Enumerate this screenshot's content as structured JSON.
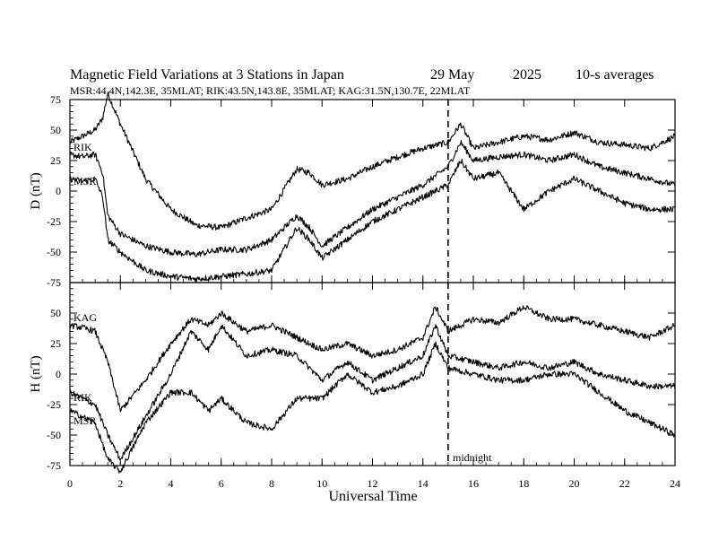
{
  "title": {
    "main": "Magnetic Field Variations at 3 Stations in Japan",
    "date": "29 May",
    "year": "2025",
    "averaging": "10-s averages"
  },
  "subtitle": "MSR:44.4N,142.3E, 35MLAT;  RIK:43.5N,143.8E, 35MLAT;  KAG:31.5N,130.7E, 22MLAT",
  "chart_data": [
    {
      "type": "line",
      "panel": "D",
      "ylabel": "D (nT)",
      "xlabel": "Universal Time",
      "xlim": [
        0,
        24
      ],
      "ylim": [
        -75,
        75
      ],
      "yticks": [
        75,
        50,
        25,
        0,
        -25,
        -50,
        -75
      ],
      "xticks": [
        0,
        2,
        4,
        6,
        8,
        10,
        12,
        14,
        16,
        18,
        20,
        22,
        24
      ],
      "grid": false,
      "x": [
        0,
        0.5,
        1.0,
        1.3,
        1.5,
        2.0,
        3.0,
        4.0,
        5.0,
        6.0,
        7.0,
        8.0,
        9.0,
        9.5,
        10.0,
        11.0,
        12.0,
        13.0,
        14.0,
        15.0,
        15.5,
        16.0,
        17.0,
        18.0,
        19.0,
        20.0,
        21.0,
        22.0,
        23.0,
        24.0
      ],
      "series": [
        {
          "name": "KAG",
          "values": [
            40,
            45,
            50,
            60,
            80,
            55,
            10,
            -15,
            -28,
            -30,
            -22,
            -15,
            18,
            15,
            5,
            10,
            20,
            28,
            35,
            40,
            55,
            35,
            40,
            45,
            42,
            48,
            40,
            38,
            35,
            45
          ]
        },
        {
          "name": "RIK",
          "values": [
            30,
            28,
            30,
            15,
            -20,
            -35,
            -45,
            -50,
            -52,
            -48,
            -48,
            -40,
            -20,
            -30,
            -45,
            -30,
            -15,
            -5,
            5,
            20,
            40,
            25,
            28,
            30,
            25,
            30,
            20,
            15,
            10,
            5
          ]
        },
        {
          "name": "MSR",
          "values": [
            10,
            8,
            10,
            -5,
            -40,
            -50,
            -65,
            -70,
            -72,
            -70,
            -68,
            -65,
            -30,
            -40,
            -55,
            -40,
            -25,
            -15,
            -5,
            5,
            25,
            10,
            15,
            -15,
            0,
            10,
            0,
            -10,
            -15,
            -15
          ]
        }
      ]
    },
    {
      "type": "line",
      "panel": "H",
      "ylabel": "H (nT)",
      "xlabel": "Universal Time",
      "xlim": [
        0,
        24
      ],
      "ylim": [
        -75,
        75
      ],
      "yticks": [
        75,
        50,
        25,
        0,
        -25,
        -50,
        -75
      ],
      "xticks": [
        0,
        2,
        4,
        6,
        8,
        10,
        12,
        14,
        16,
        18,
        20,
        22,
        24
      ],
      "grid": false,
      "x": [
        0,
        0.5,
        1.0,
        1.5,
        2.0,
        3.0,
        4.0,
        4.8,
        5.5,
        6.0,
        7.0,
        8.0,
        9.0,
        10.0,
        11.0,
        12.0,
        13.0,
        14.0,
        14.5,
        15.0,
        16.0,
        17.0,
        18.0,
        19.0,
        20.0,
        21.0,
        22.0,
        23.0,
        24.0
      ],
      "series": [
        {
          "name": "KAG",
          "values": [
            40,
            38,
            35,
            10,
            -30,
            -5,
            25,
            45,
            40,
            50,
            35,
            40,
            30,
            20,
            25,
            15,
            20,
            30,
            55,
            35,
            45,
            42,
            55,
            45,
            45,
            40,
            35,
            30,
            40
          ]
        },
        {
          "name": "RIK",
          "values": [
            -15,
            -20,
            -25,
            -50,
            -70,
            -35,
            0,
            35,
            20,
            40,
            15,
            20,
            15,
            -5,
            10,
            -5,
            5,
            15,
            40,
            15,
            10,
            5,
            10,
            5,
            10,
            0,
            -5,
            -10,
            -10
          ]
        },
        {
          "name": "MSR",
          "values": [
            -30,
            -35,
            -40,
            -70,
            -80,
            -40,
            -15,
            -15,
            -30,
            -20,
            -40,
            -45,
            -20,
            -20,
            0,
            -15,
            -10,
            0,
            25,
            5,
            0,
            -5,
            -5,
            0,
            0,
            -15,
            -30,
            -40,
            -50
          ]
        }
      ]
    }
  ],
  "labels": {
    "ytitle_d": "D (nT)",
    "ytitle_h": "H (nT)",
    "xtitle": "Universal Time",
    "midnight": "midnight",
    "st_rik_d": "RIK",
    "st_msr_d": "MSR",
    "st_kag_h": "KAG",
    "st_rik_h": "RIK",
    "st_msr_h": "MSR"
  }
}
